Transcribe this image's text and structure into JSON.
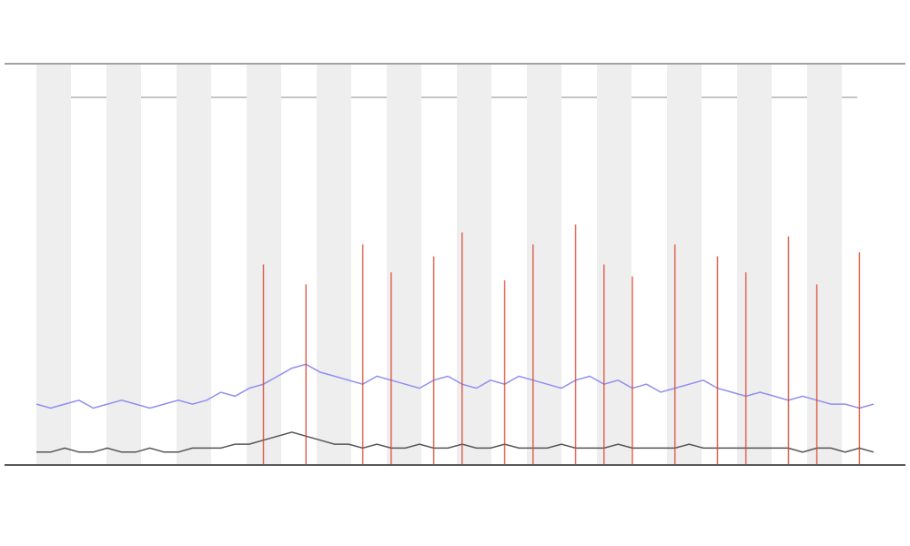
{
  "chart_data": {
    "type": "line",
    "ylim": [
      0,
      100
    ],
    "series": [
      {
        "color": "#8f8ff0",
        "values": [
          15,
          14,
          15,
          16,
          14,
          15,
          16,
          15,
          14,
          15,
          16,
          15,
          16,
          18,
          17,
          19,
          20,
          22,
          24,
          25,
          23,
          22,
          21,
          20,
          22,
          21,
          20,
          19,
          21,
          22,
          20,
          19,
          21,
          20,
          22,
          21,
          20,
          19,
          21,
          22,
          20,
          21,
          19,
          20,
          18,
          19,
          20,
          21,
          19,
          18,
          17,
          18,
          17,
          16,
          17,
          16,
          15,
          15,
          14,
          15
        ]
      },
      {
        "color": "#555555",
        "values": [
          3,
          3,
          4,
          3,
          3,
          4,
          3,
          3,
          4,
          3,
          3,
          4,
          4,
          4,
          5,
          5,
          6,
          7,
          8,
          7,
          6,
          5,
          5,
          4,
          5,
          4,
          4,
          5,
          4,
          4,
          5,
          4,
          4,
          5,
          4,
          4,
          4,
          5,
          4,
          4,
          4,
          5,
          4,
          4,
          4,
          4,
          5,
          4,
          4,
          4,
          4,
          4,
          4,
          4,
          3,
          4,
          4,
          3,
          4,
          3
        ]
      },
      {
        "type": "bar",
        "color": "#d9442c",
        "values": [
          null,
          null,
          null,
          null,
          null,
          null,
          null,
          null,
          null,
          null,
          null,
          null,
          null,
          null,
          null,
          null,
          50,
          null,
          null,
          45,
          null,
          null,
          null,
          55,
          null,
          48,
          null,
          null,
          52,
          null,
          58,
          null,
          null,
          46,
          null,
          55,
          null,
          null,
          60,
          null,
          50,
          null,
          47,
          null,
          null,
          55,
          null,
          null,
          52,
          null,
          48,
          null,
          null,
          57,
          null,
          45,
          null,
          null,
          53,
          null
        ]
      }
    ]
  }
}
